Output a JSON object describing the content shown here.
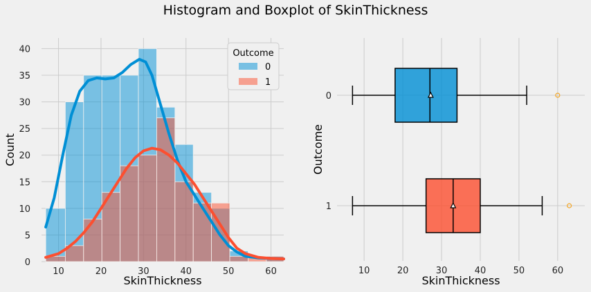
{
  "suptitle": "Histogram and Boxplot of SkinThickness",
  "colors": {
    "series0": "#008fd5",
    "series1": "#fc4f30",
    "background": "#f0f0f0",
    "grid": "#cbcbcb"
  },
  "chart_data": [
    {
      "type": "bar",
      "subtype": "histogram-with-kde",
      "xlabel": "SkinThickness",
      "ylabel": "Count",
      "xlim": [
        6,
        63
      ],
      "ylim": [
        0,
        42
      ],
      "xticks": [
        10,
        20,
        30,
        40,
        50,
        60
      ],
      "yticks": [
        0,
        5,
        10,
        15,
        20,
        25,
        30,
        35,
        40
      ],
      "grid": true,
      "legend": {
        "title": "Outcome",
        "placement": "top-right",
        "entries": [
          "0",
          "1"
        ]
      },
      "bin_edges": [
        7,
        11.6,
        15.9,
        20.2,
        24.5,
        28.8,
        33.1,
        37.4,
        41.7,
        46.0,
        50.3,
        54.6,
        58.9,
        63
      ],
      "series": [
        {
          "name": "0",
          "counts": [
            10,
            30,
            35,
            35,
            35,
            40,
            29,
            22,
            13,
            10,
            2,
            0,
            1
          ],
          "kde": [
            [
              7,
              6.5
            ],
            [
              9,
              12
            ],
            [
              11,
              20
            ],
            [
              13,
              27.5
            ],
            [
              15,
              32
            ],
            [
              17,
              34
            ],
            [
              19,
              34.5
            ],
            [
              21,
              34.3
            ],
            [
              23,
              34.5
            ],
            [
              25,
              35.5
            ],
            [
              27,
              37
            ],
            [
              29,
              38
            ],
            [
              30.5,
              37.5
            ],
            [
              32,
              35
            ],
            [
              34,
              29.5
            ],
            [
              36,
              24
            ],
            [
              38,
              19
            ],
            [
              40,
              15
            ],
            [
              42,
              12.5
            ],
            [
              44,
              10
            ],
            [
              46,
              7.5
            ],
            [
              48,
              5
            ],
            [
              50,
              3
            ],
            [
              52,
              1.8
            ],
            [
              54,
              1
            ],
            [
              57,
              0.7
            ],
            [
              60,
              0.6
            ],
            [
              63,
              0.5
            ]
          ]
        },
        {
          "name": "1",
          "counts": [
            1,
            3,
            8,
            13,
            18,
            20,
            27,
            15,
            11,
            11,
            1,
            1,
            1
          ],
          "kde": [
            [
              7,
              0.8
            ],
            [
              10,
              1.5
            ],
            [
              12,
              2.5
            ],
            [
              14,
              3.8
            ],
            [
              16,
              5.5
            ],
            [
              18,
              7.5
            ],
            [
              20,
              10
            ],
            [
              22,
              12.5
            ],
            [
              24,
              15
            ],
            [
              26,
              17.5
            ],
            [
              28,
              19.5
            ],
            [
              30,
              20.8
            ],
            [
              32,
              21.3
            ],
            [
              34,
              21
            ],
            [
              36,
              20
            ],
            [
              38,
              18.5
            ],
            [
              40,
              16.5
            ],
            [
              42,
              14.5
            ],
            [
              44,
              12
            ],
            [
              46,
              9.5
            ],
            [
              48,
              7
            ],
            [
              50,
              4.5
            ],
            [
              52,
              2.5
            ],
            [
              54,
              1.5
            ],
            [
              57,
              0.8
            ],
            [
              60,
              0.6
            ],
            [
              63,
              0.5
            ]
          ]
        }
      ]
    },
    {
      "type": "boxplot",
      "xlabel": "SkinThickness",
      "ylabel": "Outcome",
      "xlim": [
        3,
        67
      ],
      "xticks": [
        10,
        20,
        30,
        40,
        50,
        60
      ],
      "categories": [
        "0",
        "1"
      ],
      "boxes": [
        {
          "category": "0",
          "whisker_low": 7,
          "q1": 18,
          "median": 27,
          "q3": 34,
          "whisker_high": 52,
          "mean": 27.2,
          "outliers": [
            60
          ]
        },
        {
          "category": "1",
          "whisker_low": 7,
          "q1": 26,
          "median": 33,
          "q3": 40,
          "whisker_high": 56,
          "mean": 33,
          "outliers": [
            63
          ]
        }
      ]
    }
  ]
}
